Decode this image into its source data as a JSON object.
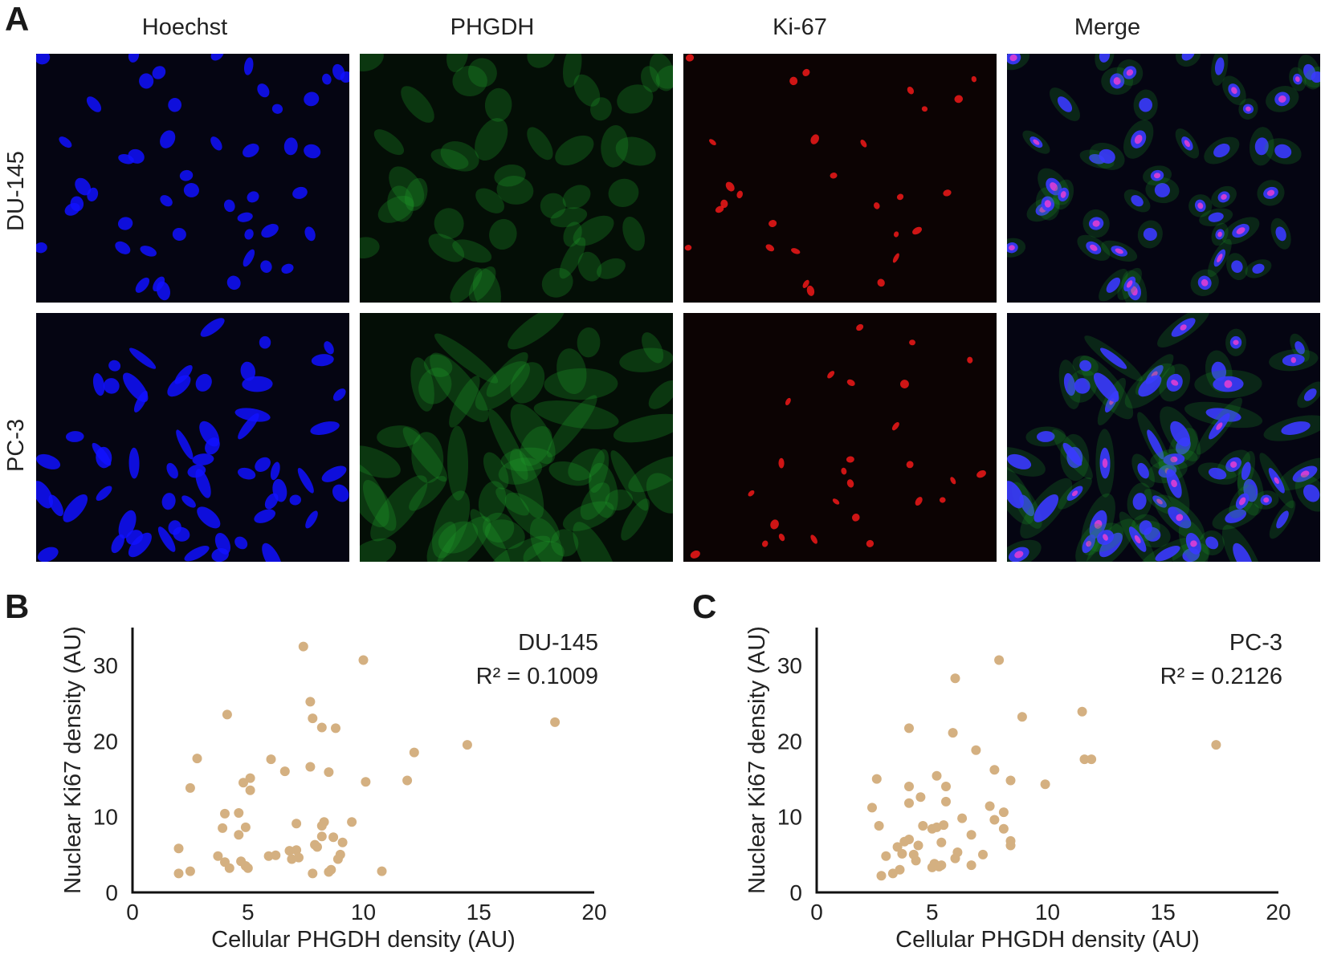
{
  "figure": {
    "panel_labels": [
      "A",
      "B",
      "C"
    ],
    "columns": [
      "Hoechst",
      "PHGDH",
      "Ki-67",
      "Merge"
    ],
    "rows": [
      "DU-145",
      "PC-3"
    ],
    "channel_colors": {
      "Hoechst": "#1010ff",
      "PHGDH": "#1fa02a",
      "Ki-67": "#ff1a1a",
      "Merge_nucleus": "#3a3aff",
      "Merge_overlap": "#ff40d0"
    },
    "background_color": "#050512"
  },
  "chart_data": [
    {
      "type": "scatter",
      "panel": "B",
      "annotation": [
        "DU-145",
        "R² = 0.1009"
      ],
      "xlabel": "Cellular PHGDH density (AU)",
      "ylabel": "Nuclear Ki67 density (AU)",
      "xlim": [
        0,
        20
      ],
      "ylim": [
        0,
        35
      ],
      "xticks": [
        "0",
        "5",
        "10",
        "15",
        "20"
      ],
      "yticks": [
        "0",
        "10",
        "20",
        "30"
      ],
      "marker_color": "#d4b081",
      "points": [
        [
          2.0,
          2.5
        ],
        [
          2.0,
          5.8
        ],
        [
          2.5,
          2.8
        ],
        [
          2.5,
          13.8
        ],
        [
          2.8,
          17.7
        ],
        [
          3.7,
          4.8
        ],
        [
          3.9,
          8.5
        ],
        [
          4.0,
          4.0
        ],
        [
          4.0,
          10.4
        ],
        [
          4.2,
          3.2
        ],
        [
          4.1,
          23.5
        ],
        [
          4.6,
          10.5
        ],
        [
          4.6,
          7.6
        ],
        [
          4.7,
          4.1
        ],
        [
          4.8,
          14.5
        ],
        [
          4.9,
          8.6
        ],
        [
          4.9,
          3.5
        ],
        [
          5.0,
          3.2
        ],
        [
          5.1,
          13.5
        ],
        [
          5.1,
          15.1
        ],
        [
          5.9,
          4.8
        ],
        [
          6.0,
          17.6
        ],
        [
          6.2,
          4.9
        ],
        [
          6.6,
          16.0
        ],
        [
          6.8,
          5.5
        ],
        [
          6.9,
          4.4
        ],
        [
          7.1,
          9.1
        ],
        [
          7.1,
          5.6
        ],
        [
          7.2,
          4.6
        ],
        [
          7.4,
          32.5
        ],
        [
          7.7,
          25.2
        ],
        [
          7.7,
          16.6
        ],
        [
          7.8,
          2.5
        ],
        [
          7.8,
          23.0
        ],
        [
          7.9,
          6.3
        ],
        [
          8.0,
          6.0
        ],
        [
          8.2,
          21.8
        ],
        [
          8.2,
          7.4
        ],
        [
          8.2,
          8.8
        ],
        [
          8.3,
          9.3
        ],
        [
          8.5,
          15.9
        ],
        [
          8.5,
          2.7
        ],
        [
          8.6,
          3.0
        ],
        [
          8.7,
          7.3
        ],
        [
          8.8,
          21.7
        ],
        [
          8.9,
          4.4
        ],
        [
          9.0,
          5.0
        ],
        [
          9.1,
          6.6
        ],
        [
          9.5,
          9.3
        ],
        [
          10.0,
          30.7
        ],
        [
          10.1,
          14.6
        ],
        [
          10.8,
          2.8
        ],
        [
          11.9,
          14.8
        ],
        [
          12.2,
          18.5
        ],
        [
          14.5,
          19.5
        ],
        [
          18.3,
          22.5
        ]
      ]
    },
    {
      "type": "scatter",
      "panel": "C",
      "annotation": [
        "PC-3",
        "R² = 0.2126"
      ],
      "xlabel": "Cellular PHGDH density (AU)",
      "ylabel": "Nuclear Ki67 density (AU)",
      "xlim": [
        0,
        20
      ],
      "ylim": [
        0,
        35
      ],
      "xticks": [
        "0",
        "5",
        "10",
        "15",
        "20"
      ],
      "yticks": [
        "0",
        "10",
        "20",
        "30"
      ],
      "marker_color": "#d4b081",
      "points": [
        [
          2.4,
          11.2
        ],
        [
          2.6,
          15.0
        ],
        [
          2.7,
          8.8
        ],
        [
          2.8,
          2.2
        ],
        [
          3.0,
          4.8
        ],
        [
          3.3,
          2.5
        ],
        [
          3.5,
          6.0
        ],
        [
          3.6,
          3.0
        ],
        [
          3.7,
          5.1
        ],
        [
          3.8,
          6.7
        ],
        [
          4.0,
          7.0
        ],
        [
          4.0,
          21.7
        ],
        [
          4.0,
          14.0
        ],
        [
          4.0,
          11.8
        ],
        [
          4.2,
          5.0
        ],
        [
          4.3,
          4.2
        ],
        [
          4.4,
          6.2
        ],
        [
          4.5,
          12.6
        ],
        [
          4.6,
          8.8
        ],
        [
          5.0,
          8.4
        ],
        [
          5.0,
          3.3
        ],
        [
          5.1,
          3.8
        ],
        [
          5.2,
          8.6
        ],
        [
          5.2,
          15.4
        ],
        [
          5.3,
          3.4
        ],
        [
          5.4,
          6.6
        ],
        [
          5.4,
          3.6
        ],
        [
          5.5,
          8.9
        ],
        [
          5.6,
          14.0
        ],
        [
          5.6,
          12.0
        ],
        [
          5.9,
          21.1
        ],
        [
          6.0,
          4.5
        ],
        [
          6.1,
          5.3
        ],
        [
          6.0,
          28.3
        ],
        [
          6.3,
          9.8
        ],
        [
          6.7,
          7.6
        ],
        [
          6.7,
          3.6
        ],
        [
          6.9,
          18.8
        ],
        [
          7.2,
          5.0
        ],
        [
          7.5,
          11.4
        ],
        [
          7.7,
          9.6
        ],
        [
          7.7,
          16.2
        ],
        [
          7.9,
          30.7
        ],
        [
          8.1,
          10.6
        ],
        [
          8.1,
          8.4
        ],
        [
          8.4,
          14.8
        ],
        [
          8.4,
          6.8
        ],
        [
          8.4,
          6.2
        ],
        [
          8.9,
          23.2
        ],
        [
          9.9,
          14.3
        ],
        [
          11.5,
          23.9
        ],
        [
          11.6,
          17.6
        ],
        [
          11.9,
          17.6
        ],
        [
          17.3,
          19.5
        ]
      ]
    }
  ]
}
